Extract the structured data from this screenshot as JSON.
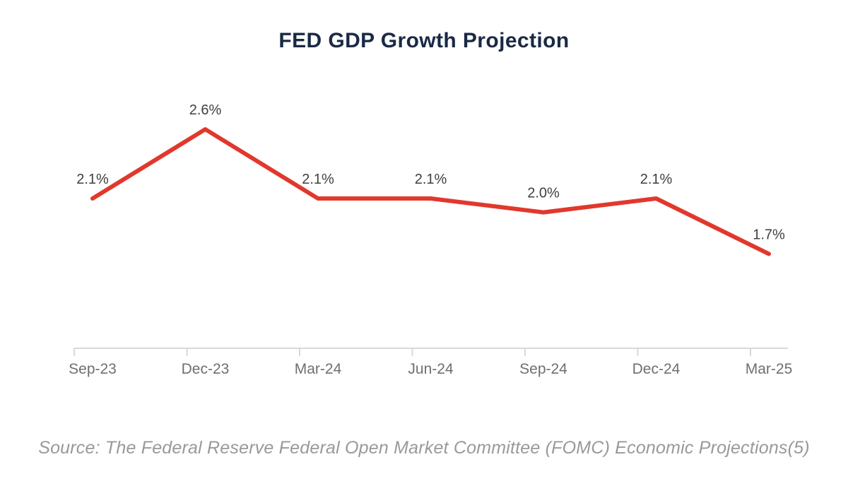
{
  "title": "FED GDP Growth Projection",
  "source_note": "Source: The Federal Reserve Federal Open Market Committee (FOMC) Economic Projections(5)",
  "colors": {
    "background": "#ffffff",
    "title_text": "#1a2944",
    "series_line": "#e1382d",
    "data_label_text": "#3f3f3f",
    "axis_label_text": "#6f6f6f",
    "axis_line": "#d8d8d8",
    "source_text": "#98999b"
  },
  "chart_data": {
    "type": "line",
    "title": "FED GDP Growth Projection",
    "categories": [
      "Sep-23",
      "Dec-23",
      "Mar-24",
      "Jun-24",
      "Sep-24",
      "Dec-24",
      "Mar-25"
    ],
    "values": [
      2.1,
      2.6,
      2.1,
      2.1,
      2.0,
      2.1,
      1.7
    ],
    "data_labels": [
      "2.1%",
      "2.6%",
      "2.1%",
      "2.1%",
      "2.0%",
      "2.1%",
      "1.7%"
    ],
    "unit": "%",
    "xlabel": "",
    "ylabel": "",
    "ylim": [
      1.0,
      3.0
    ],
    "grid": false,
    "legend": false
  }
}
